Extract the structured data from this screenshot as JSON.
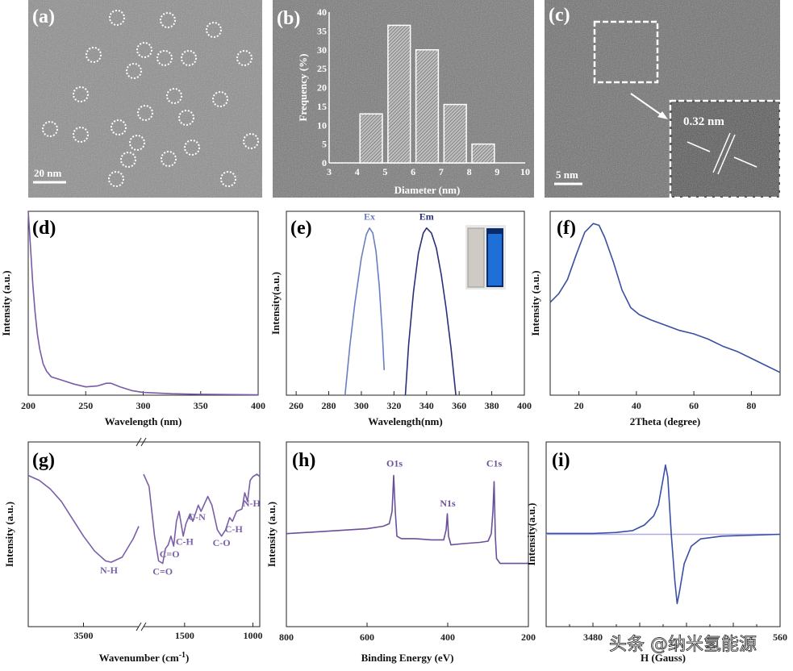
{
  "colors": {
    "d": "#7a5aa8",
    "ex": "#6a7ec0",
    "em": "#2a2f7a",
    "f": "#3b4fa0",
    "g": "#7a5fa8",
    "h": "#6a4f9a",
    "i": "#3a4fa8",
    "i_baseline": "#b4acdc",
    "vial_blue": "#1f6fd6"
  },
  "panels": {
    "a": {
      "label": "(a)",
      "scale_bar": "20 nm"
    },
    "b": {
      "label": "(b)"
    },
    "c": {
      "label": "(c)",
      "scale_bar": "5 nm",
      "lattice": "0.32 nm"
    },
    "d": {
      "label": "(d)"
    },
    "e": {
      "label": "(e)"
    },
    "f": {
      "label": "(f)"
    },
    "g": {
      "label": "(g)"
    },
    "h": {
      "label": "(h)"
    },
    "i": {
      "label": "(i)"
    }
  },
  "watermark": "头条 @纳米氢能源",
  "chart_data": [
    {
      "id": "b",
      "type": "bar",
      "xlabel": "Diameter (nm)",
      "ylabel": "Frequency (%)",
      "xlim": [
        3,
        10
      ],
      "ylim": [
        0,
        40
      ],
      "xticks": [
        "3",
        "4",
        "5",
        "6",
        "7",
        "8",
        "9",
        "10"
      ],
      "yticks": [
        "0",
        "5",
        "10",
        "15",
        "20",
        "25",
        "30",
        "35",
        "40"
      ],
      "bin_centers": [
        4.5,
        5.5,
        6.5,
        7.5,
        8.5
      ],
      "values": [
        13,
        36.5,
        30,
        15.5,
        5
      ]
    },
    {
      "id": "d",
      "type": "line",
      "xlabel": "Wavelength (nm)",
      "ylabel": "Intensity (a.u.)",
      "xlim": [
        200,
        400
      ],
      "ylim": [
        0,
        1
      ],
      "xticks": [
        "200",
        "250",
        "300",
        "350",
        "400"
      ],
      "series": [
        {
          "points": [
            [
              200,
              1
            ],
            [
              202,
              0.8
            ],
            [
              204,
              0.6
            ],
            [
              206,
              0.45
            ],
            [
              208,
              0.33
            ],
            [
              210,
              0.25
            ],
            [
              213,
              0.17
            ],
            [
              216,
              0.13
            ],
            [
              220,
              0.1
            ],
            [
              230,
              0.08
            ],
            [
              240,
              0.06
            ],
            [
              250,
              0.045
            ],
            [
              260,
              0.05
            ],
            [
              268,
              0.065
            ],
            [
              272,
              0.065
            ],
            [
              280,
              0.045
            ],
            [
              290,
              0.025
            ],
            [
              300,
              0.015
            ],
            [
              325,
              0.008
            ],
            [
              350,
              0.005
            ],
            [
              400,
              0.002
            ]
          ]
        }
      ]
    },
    {
      "id": "e",
      "type": "line",
      "xlabel": "Wavelength(nm)",
      "ylabel": "Intensity(a.u.)",
      "xlim": [
        254,
        400
      ],
      "ylim": [
        0,
        1.1
      ],
      "xticks": [
        "260",
        "280",
        "300",
        "320",
        "340",
        "360",
        "380",
        "400"
      ],
      "series": [
        {
          "name": "Ex",
          "points": [
            [
              290,
              0
            ],
            [
              293,
              0.3
            ],
            [
              296,
              0.55
            ],
            [
              300,
              0.82
            ],
            [
              303,
              0.96
            ],
            [
              305,
              1
            ],
            [
              307,
              0.97
            ],
            [
              309,
              0.86
            ],
            [
              311,
              0.65
            ],
            [
              313,
              0.35
            ],
            [
              314,
              0.15
            ]
          ]
        },
        {
          "name": "Em",
          "points": [
            [
              327,
              0
            ],
            [
              329,
              0.3
            ],
            [
              332,
              0.62
            ],
            [
              335,
              0.85
            ],
            [
              338,
              0.97
            ],
            [
              340,
              1
            ],
            [
              343,
              0.97
            ],
            [
              346,
              0.88
            ],
            [
              349,
              0.72
            ],
            [
              352,
              0.52
            ],
            [
              355,
              0.28
            ],
            [
              358,
              0
            ]
          ]
        }
      ]
    },
    {
      "id": "f",
      "type": "line",
      "xlabel": "2Theta (degree)",
      "ylabel": "Intensity (a.u.)",
      "xlim": [
        10,
        90
      ],
      "ylim": [
        0,
        1.05
      ],
      "xticks": [
        "20",
        "40",
        "60",
        "80"
      ],
      "series": [
        {
          "points": [
            [
              10,
              0.53
            ],
            [
              13,
              0.58
            ],
            [
              16,
              0.66
            ],
            [
              19,
              0.8
            ],
            [
              22,
              0.93
            ],
            [
              25,
              0.98
            ],
            [
              27,
              0.97
            ],
            [
              29,
              0.9
            ],
            [
              32,
              0.76
            ],
            [
              35,
              0.6
            ],
            [
              38,
              0.5
            ],
            [
              41,
              0.46
            ],
            [
              45,
              0.43
            ],
            [
              50,
              0.4
            ],
            [
              55,
              0.37
            ],
            [
              60,
              0.35
            ],
            [
              65,
              0.32
            ],
            [
              70,
              0.28
            ],
            [
              75,
              0.25
            ],
            [
              80,
              0.21
            ],
            [
              85,
              0.17
            ],
            [
              90,
              0.13
            ]
          ]
        }
      ]
    },
    {
      "id": "g",
      "type": "line",
      "xlabel": "Wavenumber (cm",
      "xlabel_sup": "-1",
      "xlabel_end": ")",
      "ylabel": "Intensity (a.u.)",
      "xlim_left": [
        4000,
        3000
      ],
      "xlim_right": [
        1800,
        950
      ],
      "ylim": [
        -0.23,
        1.26
      ],
      "axis_break": true,
      "xticks": [
        "3500",
        "1500",
        "1000"
      ],
      "series": [
        {
          "segment": "left",
          "points": [
            [
              4000,
              0.99
            ],
            [
              3900,
              0.95
            ],
            [
              3800,
              0.88
            ],
            [
              3700,
              0.78
            ],
            [
              3600,
              0.64
            ],
            [
              3500,
              0.5
            ],
            [
              3400,
              0.38
            ],
            [
              3300,
              0.3
            ],
            [
              3250,
              0.29
            ],
            [
              3150,
              0.33
            ],
            [
              3050,
              0.48
            ],
            [
              3000,
              0.58
            ]
          ]
        },
        {
          "segment": "right",
          "points": [
            [
              1800,
              1.0
            ],
            [
              1760,
              0.9
            ],
            [
              1720,
              0.5
            ],
            [
              1690,
              0.3
            ],
            [
              1660,
              0.28
            ],
            [
              1640,
              0.4
            ],
            [
              1620,
              0.43
            ],
            [
              1600,
              0.5
            ],
            [
              1580,
              0.42
            ],
            [
              1560,
              0.62
            ],
            [
              1540,
              0.7
            ],
            [
              1510,
              0.5
            ],
            [
              1490,
              0.6
            ],
            [
              1460,
              0.68
            ],
            [
              1440,
              0.62
            ],
            [
              1400,
              0.75
            ],
            [
              1380,
              0.7
            ],
            [
              1330,
              0.82
            ],
            [
              1300,
              0.75
            ],
            [
              1260,
              0.55
            ],
            [
              1230,
              0.5
            ],
            [
              1200,
              0.55
            ],
            [
              1170,
              0.65
            ],
            [
              1150,
              0.62
            ],
            [
              1120,
              0.7
            ],
            [
              1080,
              0.72
            ],
            [
              1060,
              0.85
            ],
            [
              1040,
              0.78
            ],
            [
              1020,
              0.95
            ],
            [
              1000,
              0.98
            ],
            [
              970,
              1.0
            ],
            [
              950,
              0.98
            ]
          ]
        }
      ],
      "annotations": [
        {
          "text": "N-H",
          "x": 3270,
          "y": 0.2
        },
        {
          "text": "C=O",
          "x": 1660,
          "y": 0.19
        },
        {
          "text": "C=O",
          "x": 1610,
          "y": 0.33
        },
        {
          "text": "C-H",
          "x": 1500,
          "y": 0.43
        },
        {
          "text": "C-N",
          "x": 1410,
          "y": 0.63
        },
        {
          "text": "C-O",
          "x": 1230,
          "y": 0.42
        },
        {
          "text": "C-H",
          "x": 1140,
          "y": 0.53
        },
        {
          "text": "N-H",
          "x": 1010,
          "y": 0.74
        }
      ]
    },
    {
      "id": "h",
      "type": "line",
      "xlabel": "Binding Energy (eV)",
      "ylabel": "Intensity (a.u.)",
      "xlim": [
        800,
        200
      ],
      "ylim": [
        -0.23,
        1.26
      ],
      "xticks": [
        "800",
        "600",
        "400",
        "200"
      ],
      "series": [
        {
          "points": [
            [
              800,
              0.52
            ],
            [
              700,
              0.54
            ],
            [
              600,
              0.56
            ],
            [
              560,
              0.58
            ],
            [
              545,
              0.6
            ],
            [
              538,
              0.7
            ],
            [
              534,
              0.99
            ],
            [
              530,
              0.7
            ],
            [
              526,
              0.5
            ],
            [
              515,
              0.48
            ],
            [
              480,
              0.48
            ],
            [
              440,
              0.47
            ],
            [
              410,
              0.47
            ],
            [
              404,
              0.55
            ],
            [
              401,
              0.68
            ],
            [
              398,
              0.5
            ],
            [
              392,
              0.43
            ],
            [
              360,
              0.44
            ],
            [
              320,
              0.45
            ],
            [
              300,
              0.46
            ],
            [
              292,
              0.52
            ],
            [
              288,
              0.7
            ],
            [
              285,
              0.94
            ],
            [
              282,
              0.5
            ],
            [
              279,
              0.32
            ],
            [
              270,
              0.28
            ],
            [
              230,
              0.28
            ],
            [
              200,
              0.28
            ]
          ]
        }
      ],
      "annotations": [
        {
          "text": "O1s",
          "x": 532,
          "y": 1.06
        },
        {
          "text": "N1s",
          "x": 400,
          "y": 0.74
        },
        {
          "text": "C1s",
          "x": 285,
          "y": 1.06
        }
      ]
    },
    {
      "id": "i",
      "type": "line",
      "xlabel": "H (Gauss)",
      "ylabel": "Intensity(a.u.)",
      "xlim": [
        3460,
        3560
      ],
      "ylim": [
        -1,
        1
      ],
      "xticks": [
        "3480",
        "560"
      ],
      "series": [
        {
          "points": [
            [
              3460,
              0.01
            ],
            [
              3480,
              0.01
            ],
            [
              3490,
              0.02
            ],
            [
              3497,
              0.04
            ],
            [
              3502,
              0.1
            ],
            [
              3506,
              0.2
            ],
            [
              3508,
              0.32
            ],
            [
              3510,
              0.6
            ],
            [
              3511,
              0.75
            ],
            [
              3512,
              0.62
            ],
            [
              3513.5,
              0
            ],
            [
              3515,
              -0.5
            ],
            [
              3516,
              -0.75
            ],
            [
              3517,
              -0.62
            ],
            [
              3519,
              -0.32
            ],
            [
              3522,
              -0.13
            ],
            [
              3526,
              -0.05
            ],
            [
              3535,
              -0.02
            ],
            [
              3560,
              0
            ]
          ]
        }
      ]
    }
  ]
}
